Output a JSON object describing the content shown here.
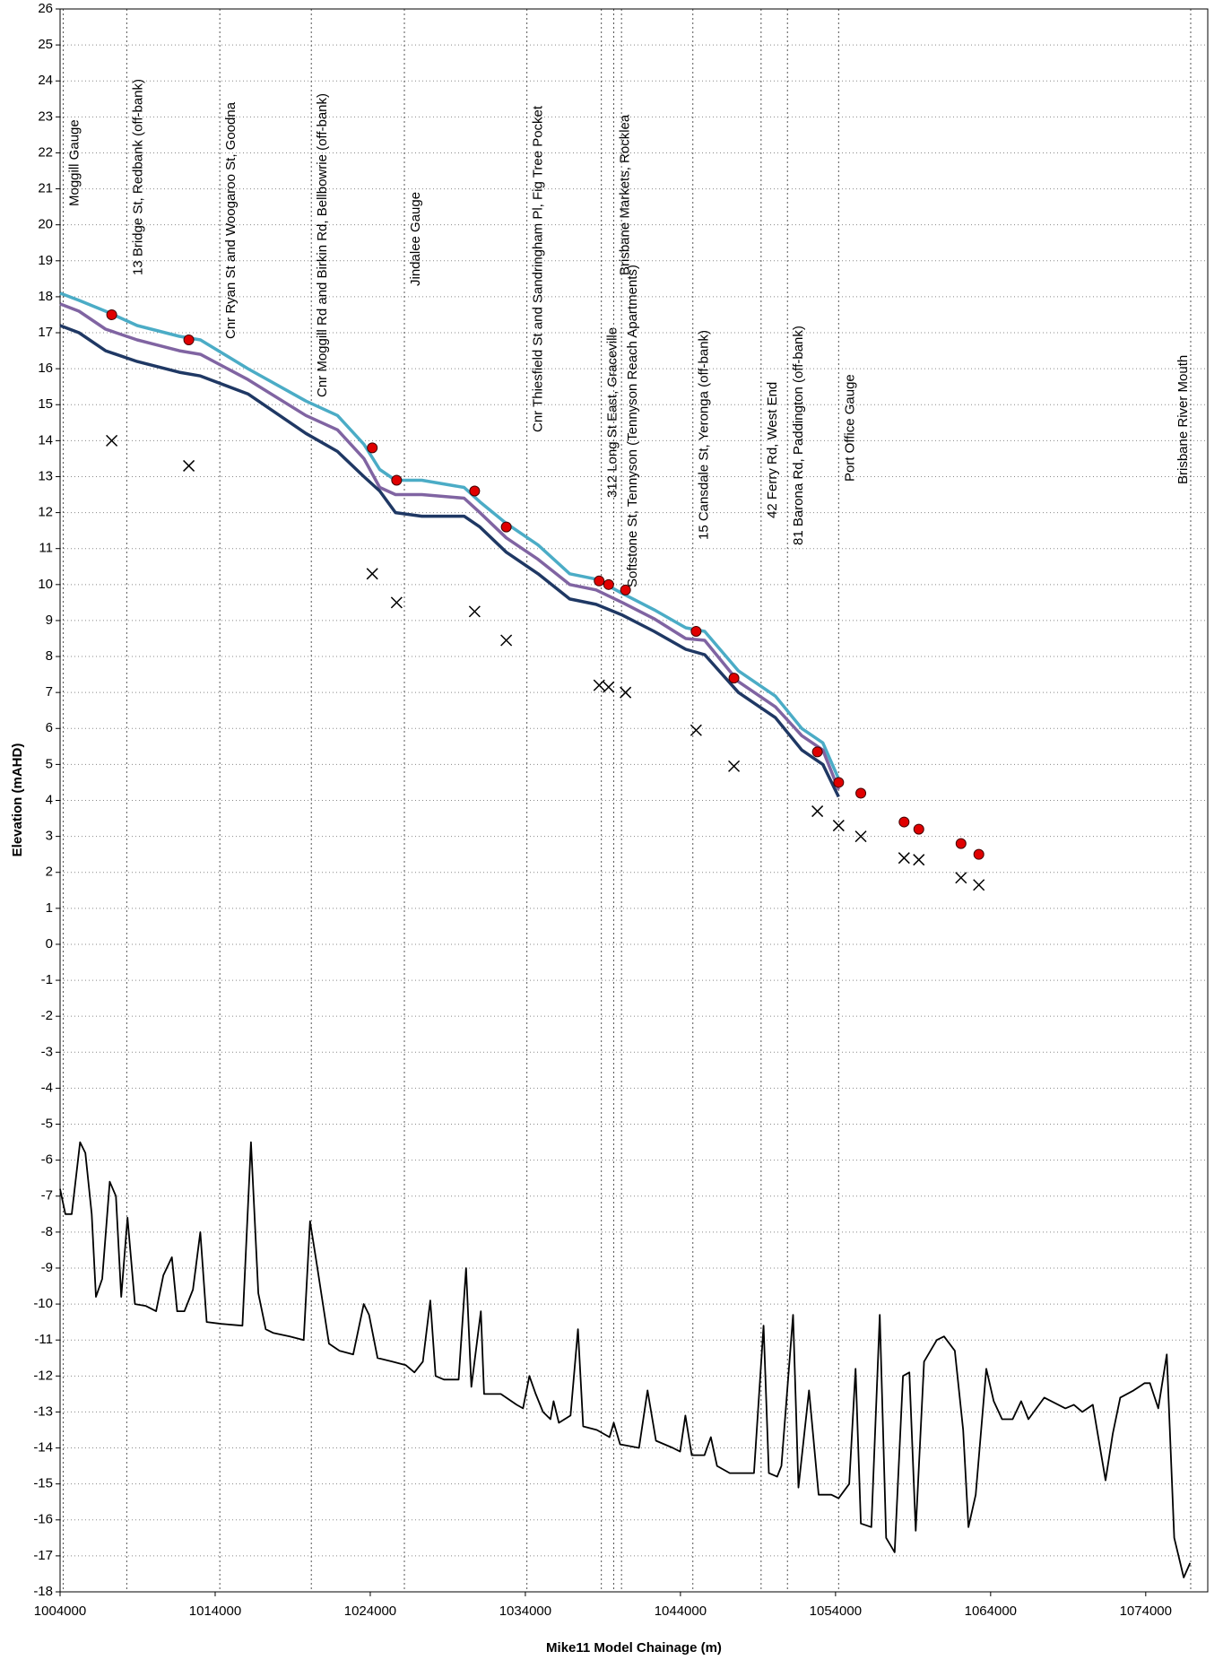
{
  "chart_data": {
    "type": "line",
    "x_label": "Mike11 Model Chainage (m)",
    "y_label": "Elevation (mAHD)",
    "xlim": [
      1004000,
      1078000
    ],
    "xticks": [
      1004000,
      1014000,
      1024000,
      1034000,
      1044000,
      1054000,
      1064000,
      1074000
    ],
    "ylim": [
      -18,
      26
    ],
    "yticks": [
      -18,
      -17,
      -16,
      -15,
      -14,
      -13,
      -12,
      -11,
      -10,
      -9,
      -8,
      -7,
      -6,
      -5,
      -4,
      -3,
      -2,
      -1,
      0,
      1,
      2,
      3,
      4,
      5,
      6,
      7,
      8,
      9,
      10,
      11,
      12,
      13,
      14,
      15,
      16,
      17,
      18,
      19,
      20,
      21,
      22,
      23,
      24,
      25,
      26
    ],
    "grid": true,
    "annotations": [
      {
        "x": 1004200,
        "text": "Moggill Gauge"
      },
      {
        "x": 1008300,
        "text": "13 Bridge St, Redbank (off-bank)"
      },
      {
        "x": 1014300,
        "text": "Cnr Ryan St and Woogaroo St, Goodna"
      },
      {
        "x": 1020200,
        "text": "Cnr Moggill Rd and Birkin Rd, Bellbowrie (off-bank)"
      },
      {
        "x": 1026200,
        "text": "Jindalee Gauge"
      },
      {
        "x": 1034100,
        "text": "Cnr Thiesfield St and Sandringham Pl, Fig Tree Pocket"
      },
      {
        "x": 1038900,
        "text": "312 Long St East, Graceville"
      },
      {
        "x": 1039700,
        "text": "Brisbane Markets, Rocklea"
      },
      {
        "x": 1040200,
        "text": "Softstone St, Tennyson (Tennyson Reach Apartments)"
      },
      {
        "x": 1044800,
        "text": "15 Cansdale St, Yeronga (off-bank)"
      },
      {
        "x": 1049200,
        "text": "42 Ferry Rd, West End"
      },
      {
        "x": 1050900,
        "text": "81 Barona Rd, Paddington (off-bank)"
      },
      {
        "x": 1054200,
        "text": "Port Office Gauge"
      },
      {
        "x": 1076900,
        "text": "Brisbane River Mouth"
      }
    ],
    "series": [
      {
        "kind": "line",
        "color": "#4bacc6",
        "x": [
          1004000,
          1005220,
          1006930,
          1008970,
          1011690,
          1013050,
          1016110,
          1019850,
          1021890,
          1023590,
          1024610,
          1025630,
          1027330,
          1030050,
          1031070,
          1032770,
          1034820,
          1036860,
          1038560,
          1040260,
          1042300,
          1044340,
          1045560,
          1047740,
          1050120,
          1051820,
          1053180,
          1054200
        ],
        "values": [
          18.1,
          17.9,
          17.6,
          17.2,
          16.9,
          16.8,
          16.0,
          15.1,
          14.7,
          13.9,
          13.2,
          12.9,
          12.9,
          12.7,
          12.3,
          11.7,
          11.1,
          10.3,
          10.15,
          9.75,
          9.3,
          8.8,
          8.7,
          7.6,
          6.9,
          6.0,
          5.6,
          4.6
        ]
      },
      {
        "kind": "line",
        "color": "#8064a2",
        "x": [
          1004000,
          1005220,
          1006930,
          1008970,
          1011690,
          1013050,
          1016110,
          1019850,
          1021890,
          1023590,
          1024610,
          1025630,
          1027330,
          1030050,
          1031070,
          1032770,
          1034820,
          1036860,
          1038560,
          1040260,
          1042300,
          1044340,
          1045560,
          1047740,
          1050120,
          1051820,
          1053180,
          1054200
        ],
        "values": [
          17.8,
          17.6,
          17.1,
          16.8,
          16.5,
          16.4,
          15.7,
          14.7,
          14.3,
          13.5,
          12.7,
          12.5,
          12.5,
          12.4,
          12.0,
          11.3,
          10.7,
          10.0,
          9.85,
          9.5,
          9.05,
          8.5,
          8.45,
          7.3,
          6.6,
          5.8,
          5.4,
          4.3
        ]
      },
      {
        "kind": "line",
        "color": "#1f3864",
        "x": [
          1004000,
          1005220,
          1006930,
          1008970,
          1011690,
          1013050,
          1016110,
          1019850,
          1021890,
          1023590,
          1024610,
          1025630,
          1027330,
          1030050,
          1031070,
          1032770,
          1034820,
          1036860,
          1038560,
          1040260,
          1042300,
          1044340,
          1045560,
          1047740,
          1050120,
          1051820,
          1053180,
          1054200
        ],
        "values": [
          17.2,
          17.0,
          16.5,
          16.2,
          15.9,
          15.8,
          15.3,
          14.2,
          13.7,
          13.0,
          12.6,
          12.0,
          11.9,
          11.9,
          11.6,
          10.9,
          10.3,
          9.6,
          9.45,
          9.15,
          8.7,
          8.2,
          8.05,
          7.0,
          6.3,
          5.4,
          5.0,
          4.1
        ]
      },
      {
        "kind": "circle",
        "color": "#e00000",
        "x": [
          1007330,
          1012300,
          1024130,
          1025700,
          1030730,
          1032770,
          1038760,
          1039370,
          1040460,
          1045010,
          1047450,
          1052830,
          1054200,
          1055630,
          1058420,
          1059370,
          1062090,
          1063240
        ],
        "values": [
          17.5,
          16.8,
          13.8,
          12.9,
          12.6,
          11.6,
          10.1,
          10.0,
          9.85,
          8.7,
          7.4,
          5.35,
          4.5,
          4.2,
          3.4,
          3.2,
          2.8,
          2.5
        ]
      },
      {
        "kind": "cross",
        "color": "#000000",
        "x": [
          1007330,
          1012300,
          1024130,
          1025700,
          1030730,
          1032770,
          1038760,
          1039370,
          1040460,
          1045010,
          1047450,
          1052830,
          1054200,
          1055630,
          1058420,
          1059370,
          1062090,
          1063240
        ],
        "values": [
          14.0,
          13.3,
          10.3,
          9.5,
          9.25,
          8.45,
          7.2,
          7.15,
          7.0,
          5.95,
          4.95,
          3.7,
          3.3,
          3.0,
          2.4,
          2.35,
          1.85,
          1.65
        ]
      },
      {
        "kind": "thin-line",
        "color": "#000000",
        "x": [
          1004000,
          1004340,
          1004750,
          1005290,
          1005630,
          1006040,
          1006310,
          1006720,
          1007200,
          1007600,
          1007940,
          1008350,
          1008830,
          1009510,
          1010190,
          1010660,
          1011210,
          1011550,
          1012020,
          1012570,
          1013040,
          1013450,
          1014400,
          1015760,
          1016310,
          1016780,
          1017260,
          1017730,
          1018820,
          1019710,
          1020120,
          1020590,
          1021340,
          1022020,
          1022900,
          1023580,
          1023920,
          1024470,
          1025420,
          1026300,
          1026850,
          1027390,
          1027870,
          1028210,
          1028750,
          1029700,
          1030180,
          1030520,
          1031130,
          1031340,
          1032420,
          1033440,
          1033850,
          1034260,
          1034670,
          1035140,
          1035620,
          1035820,
          1036160,
          1036910,
          1037390,
          1037730,
          1038610,
          1039430,
          1039700,
          1040110,
          1041330,
          1041880,
          1042420,
          1043510,
          1043980,
          1044320,
          1044730,
          1045550,
          1045960,
          1046360,
          1047180,
          1048740,
          1049360,
          1049700,
          1050240,
          1050510,
          1051260,
          1051610,
          1052290,
          1052910,
          1053730,
          1054200,
          1054880,
          1055290,
          1055630,
          1056310,
          1056850,
          1057260,
          1057810,
          1058350,
          1058760,
          1059170,
          1059710,
          1060530,
          1061000,
          1061690,
          1062230,
          1062570,
          1063040,
          1063720,
          1064200,
          1064740,
          1065420,
          1065970,
          1066440,
          1067460,
          1068820,
          1069370,
          1069910,
          1070590,
          1071410,
          1071880,
          1072360,
          1073220,
          1073930,
          1074270,
          1074810,
          1075360,
          1075840,
          1076450,
          1076860
        ],
        "values": [
          -6.8,
          -7.5,
          -7.5,
          -5.5,
          -5.8,
          -7.5,
          -9.8,
          -9.3,
          -6.6,
          -7.0,
          -9.8,
          -7.6,
          -10.0,
          -10.05,
          -10.2,
          -9.2,
          -8.7,
          -10.2,
          -10.2,
          -9.6,
          -8.0,
          -10.5,
          -10.55,
          -10.6,
          -5.5,
          -9.7,
          -10.7,
          -10.8,
          -10.9,
          -11.0,
          -7.7,
          -9.0,
          -11.1,
          -11.3,
          -11.4,
          -10.0,
          -10.3,
          -11.5,
          -11.6,
          -11.7,
          -11.9,
          -11.6,
          -9.9,
          -12.0,
          -12.1,
          -12.1,
          -9.0,
          -12.3,
          -10.2,
          -12.5,
          -12.5,
          -12.8,
          -12.9,
          -12.0,
          -12.5,
          -13.0,
          -13.2,
          -12.7,
          -13.3,
          -13.1,
          -10.7,
          -13.4,
          -13.5,
          -13.7,
          -13.3,
          -13.9,
          -14.0,
          -12.4,
          -13.8,
          -14.0,
          -14.1,
          -13.1,
          -14.2,
          -14.2,
          -13.7,
          -14.5,
          -14.7,
          -14.7,
          -10.6,
          -14.7,
          -14.8,
          -14.5,
          -10.3,
          -15.1,
          -12.4,
          -15.3,
          -15.3,
          -15.4,
          -15.0,
          -11.8,
          -16.1,
          -16.2,
          -10.3,
          -16.5,
          -16.9,
          -12.0,
          -11.9,
          -16.3,
          -11.6,
          -11.0,
          -10.9,
          -11.3,
          -13.5,
          -16.2,
          -15.3,
          -11.8,
          -12.7,
          -13.2,
          -13.2,
          -12.7,
          -13.2,
          -12.6,
          -12.9,
          -12.8,
          -13.0,
          -12.8,
          -14.9,
          -13.6,
          -12.6,
          -12.4,
          -12.2,
          -12.2,
          -12.9,
          -11.4,
          -16.5,
          -17.6,
          -17.2
        ]
      }
    ]
  }
}
